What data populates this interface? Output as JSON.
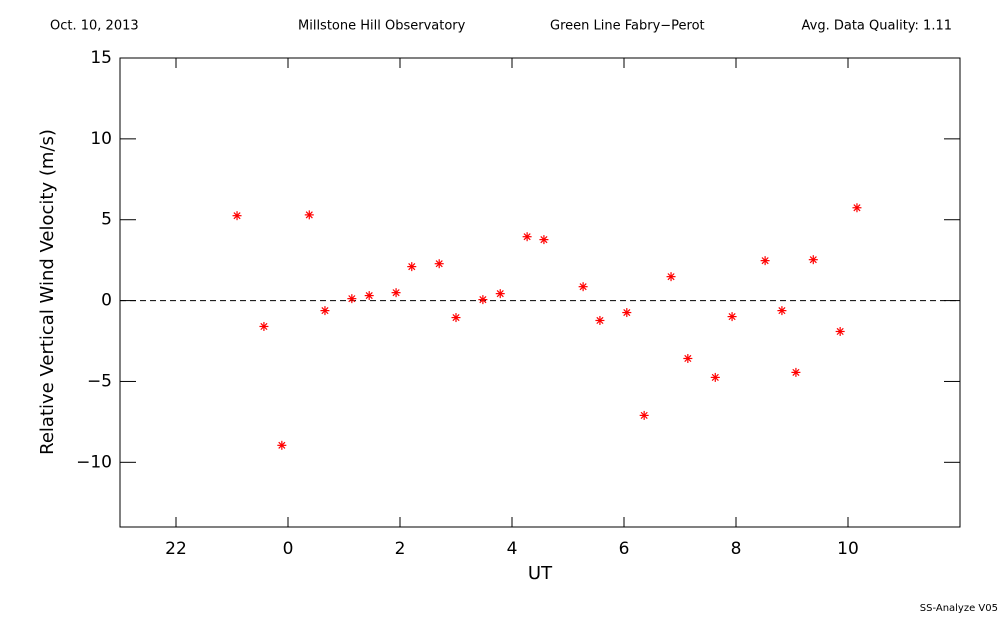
{
  "chart_data": {
    "type": "scatter",
    "header": [
      "Oct. 10, 2013",
      "Millstone Hill Observatory",
      "Green Line Fabry−Perot",
      "Avg. Data Quality: 1.11"
    ],
    "footer": "SS-Analyze V05",
    "xlabel": "UT",
    "ylabel": "Relative Vertical Wind Velocity (m/s)",
    "xlim": [
      -3,
      12
    ],
    "ylim": [
      -14,
      15
    ],
    "xticks": [
      {
        "value": -2,
        "label": "22"
      },
      0,
      2,
      4,
      6,
      8,
      10
    ],
    "yticks": [
      {
        "value": -10,
        "label": "−10"
      },
      {
        "value": -5,
        "label": "−5"
      },
      0,
      5,
      10,
      15
    ],
    "hline": 0,
    "color": "#ff0000",
    "x": [
      -0.91,
      -0.43,
      -0.11,
      0.38,
      0.66,
      1.14,
      1.45,
      1.93,
      2.21,
      2.7,
      3.0,
      3.48,
      3.79,
      4.27,
      4.57,
      5.27,
      5.57,
      6.05,
      6.36,
      6.84,
      7.14,
      7.63,
      7.93,
      8.52,
      8.82,
      9.07,
      9.38,
      9.86,
      10.16
    ],
    "values": [
      5.25,
      -1.6,
      -8.95,
      5.3,
      -0.62,
      0.12,
      0.31,
      0.49,
      2.1,
      2.28,
      -1.05,
      0.06,
      0.43,
      3.95,
      3.77,
      0.86,
      -1.23,
      -0.74,
      -7.1,
      1.48,
      -3.58,
      -4.75,
      -0.99,
      2.47,
      -0.62,
      -4.44,
      2.53,
      -1.91,
      5.74
    ]
  }
}
